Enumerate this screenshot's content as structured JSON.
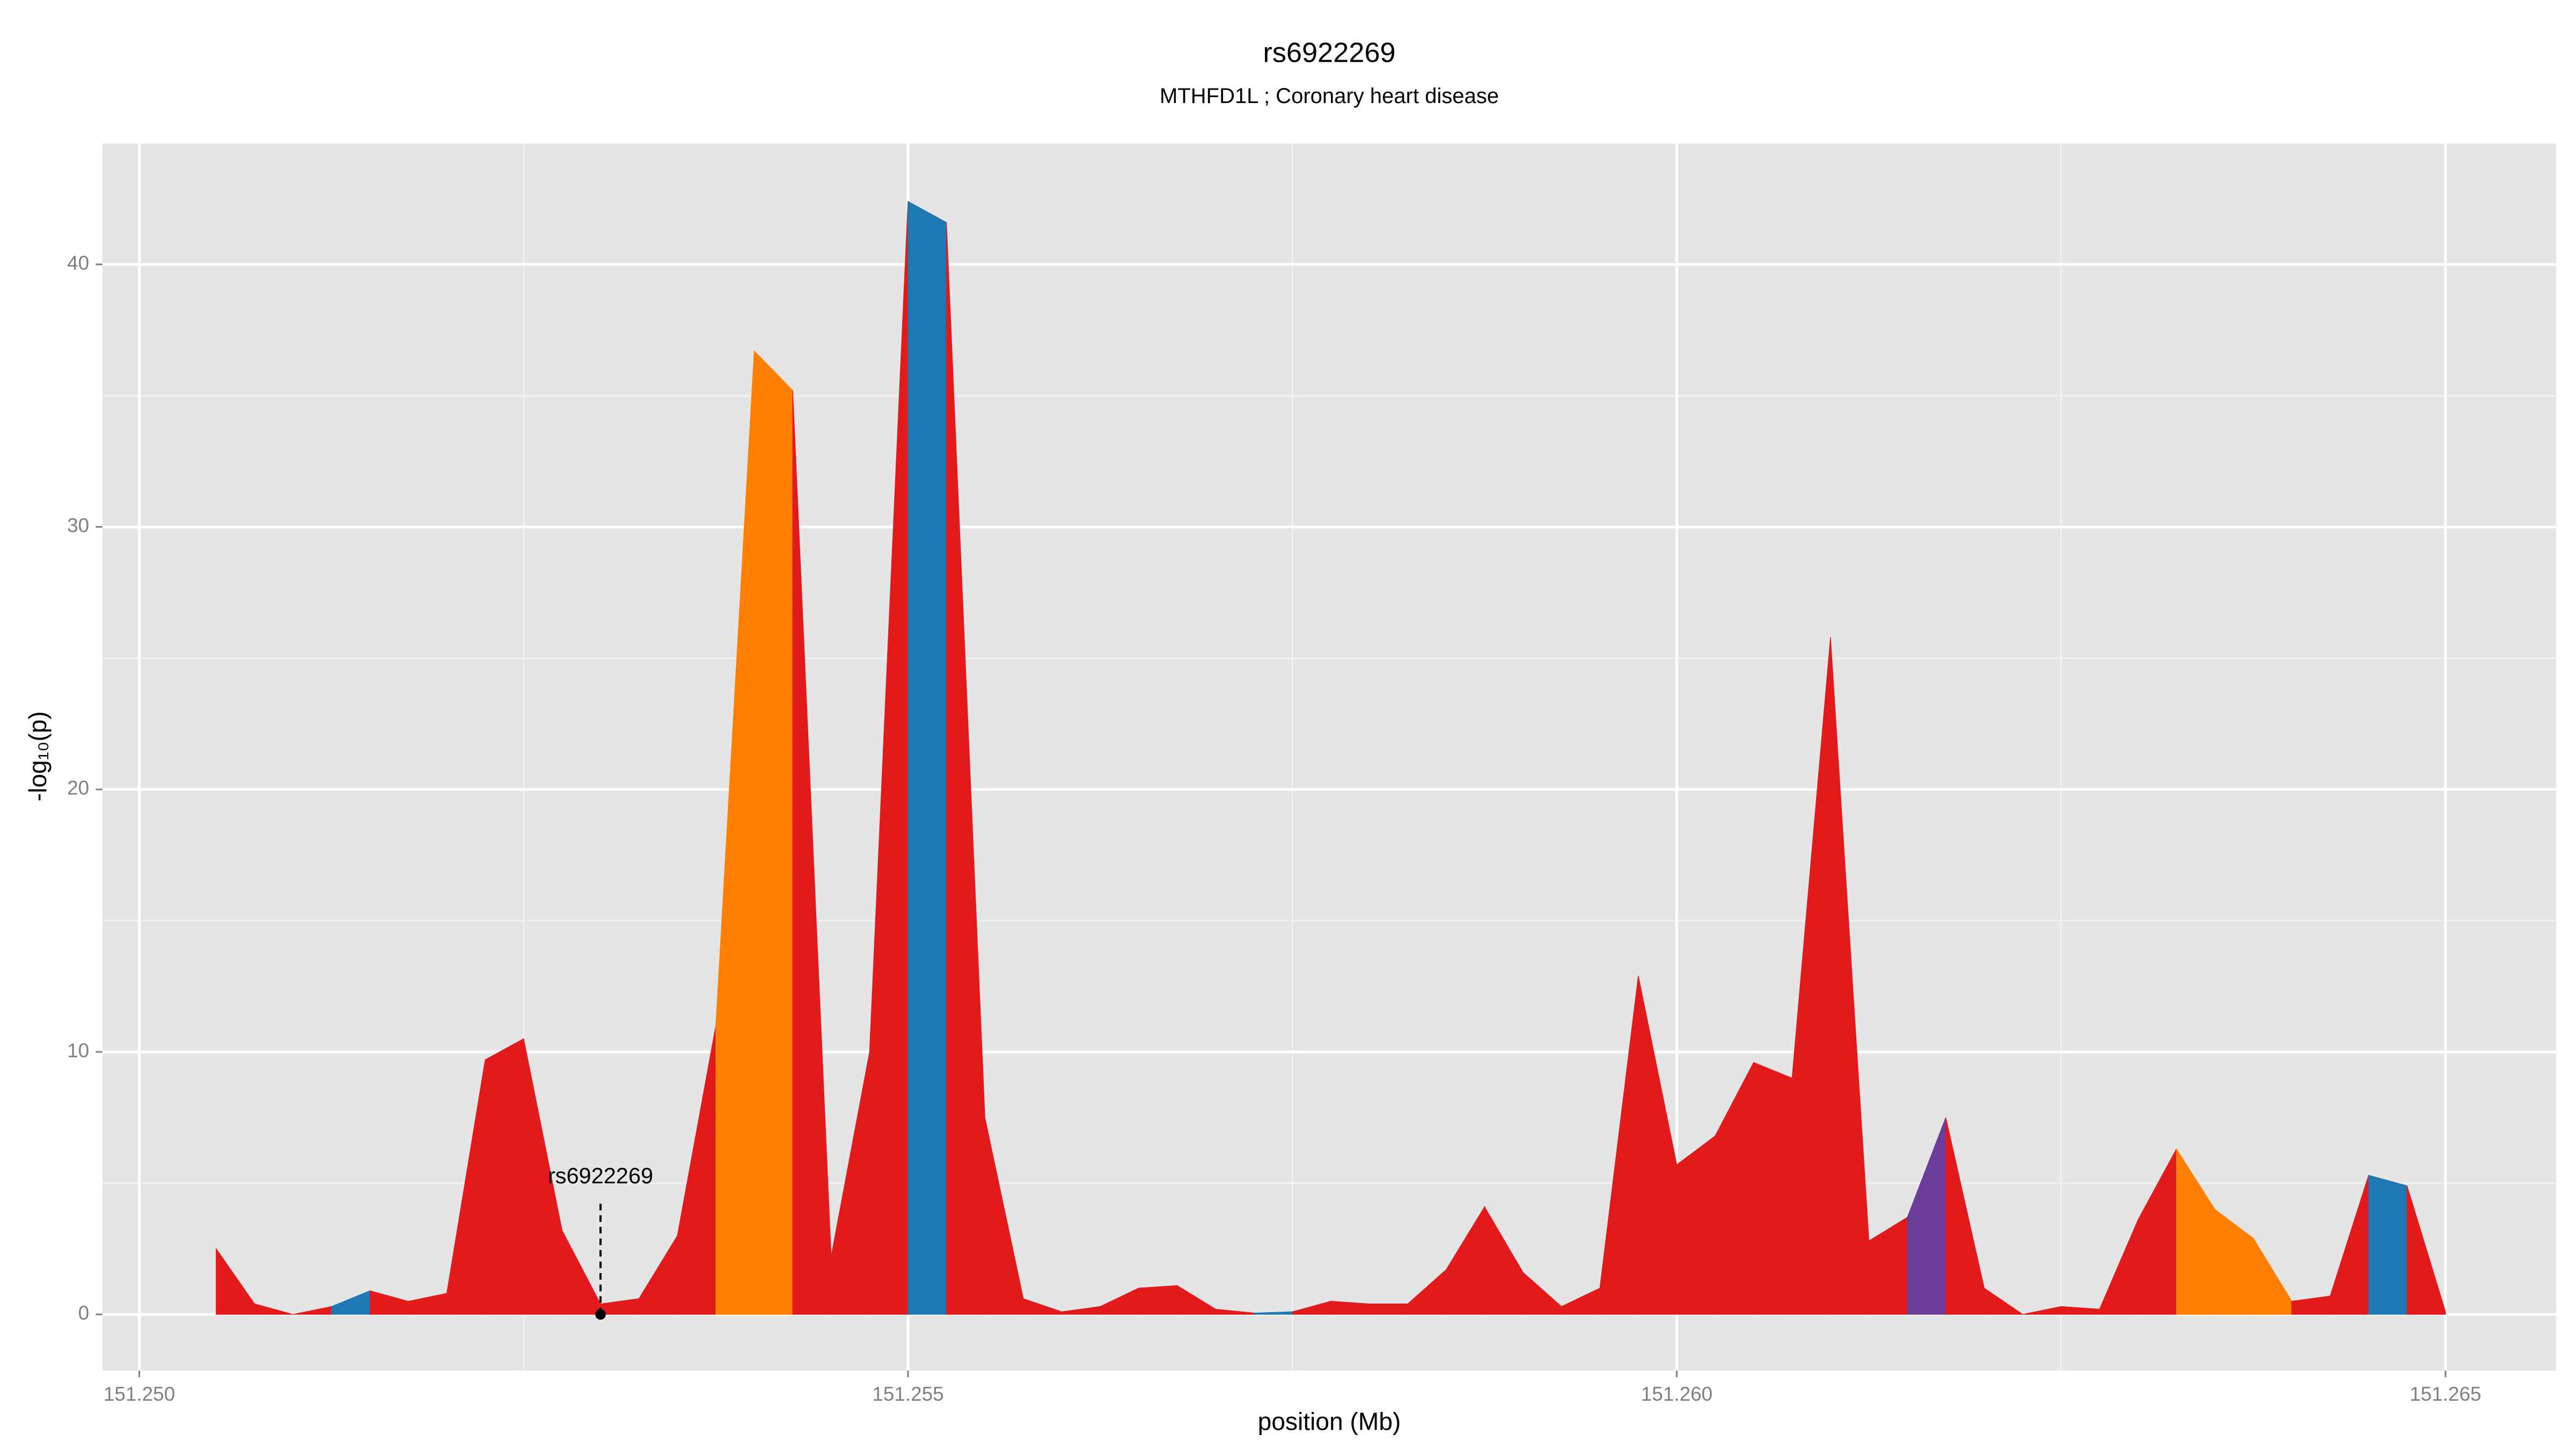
{
  "chart_data": {
    "type": "area",
    "title": "rs6922269",
    "subtitle": "MTHFD1L ; Coronary heart disease",
    "x_label": "position (Mb)",
    "y_label": "-log₁₀(p)",
    "x": [
      151.2505,
      151.25075,
      151.251,
      151.25125,
      151.2515,
      151.25175,
      151.252,
      151.25225,
      151.2525,
      151.25275,
      151.253,
      151.25325,
      151.2535,
      151.25375,
      151.254,
      151.25425,
      151.2545,
      151.25475,
      151.255,
      151.25525,
      151.2555,
      151.25575,
      151.256,
      151.25625,
      151.2565,
      151.25675,
      151.257,
      151.25725,
      151.2575,
      151.25775,
      151.258,
      151.25825,
      151.2585,
      151.25875,
      151.259,
      151.25925,
      151.2595,
      151.25975,
      151.26,
      151.26025,
      151.2605,
      151.26075,
      151.261,
      151.26125,
      151.2615,
      151.26175,
      151.262,
      151.26225,
      151.2625,
      151.26275,
      151.263,
      151.26325,
      151.2635,
      151.26375,
      151.264,
      151.26425,
      151.2645,
      151.26475,
      151.265
    ],
    "values": [
      2.5,
      0.4,
      0,
      0.3,
      0.9,
      0.5,
      0.8,
      9.7,
      10.5,
      3.2,
      0.4,
      0.6,
      3.0,
      11,
      36.7,
      35.2,
      2.2,
      10,
      42.4,
      41.6,
      7.5,
      0.6,
      0.1,
      0.3,
      1.0,
      1.1,
      0.2,
      0.05,
      0.1,
      0.5,
      0.4,
      0.4,
      1.7,
      4.1,
      1.6,
      0.3,
      1.0,
      12.9,
      5.7,
      6.8,
      9.6,
      9.0,
      25.8,
      2.8,
      3.7,
      7.5,
      1.0,
      0,
      0.3,
      0.2,
      3.6,
      6.3,
      4.0,
      2.9,
      0.5,
      0.7,
      5.3,
      4.9,
      0.1
    ],
    "colors": [
      "#e31a1c",
      "#e31a1c",
      "#e31a1c",
      "#1f78b4",
      "#e31a1c",
      "#e31a1c",
      "#e31a1c",
      "#e31a1c",
      "#e31a1c",
      "#e31a1c",
      "#e31a1c",
      "#e31a1c",
      "#e31a1c",
      "#ff7f00",
      "#ff7f00",
      "#e31a1c",
      "#e31a1c",
      "#e31a1c",
      "#1f78b4",
      "#e31a1c",
      "#e31a1c",
      "#e31a1c",
      "#e31a1c",
      "#e31a1c",
      "#e31a1c",
      "#e31a1c",
      "#e31a1c",
      "#1f78b4",
      "#e31a1c",
      "#e31a1c",
      "#e31a1c",
      "#e31a1c",
      "#e31a1c",
      "#e31a1c",
      "#e31a1c",
      "#e31a1c",
      "#e31a1c",
      "#e31a1c",
      "#e31a1c",
      "#e31a1c",
      "#e31a1c",
      "#e31a1c",
      "#e31a1c",
      "#e31a1c",
      "#6a3d9a",
      "#e31a1c",
      "#e31a1c",
      "#e31a1c",
      "#e31a1c",
      "#e31a1c",
      "#e31a1c",
      "#ff7f00",
      "#ff7f00",
      "#ff7f00",
      "#e31a1c",
      "#e31a1c",
      "#1f78b4",
      "#e31a1c",
      "#e31a1c"
    ],
    "xlim": [
      151.24976,
      151.26572
    ],
    "ylim": [
      -2.14,
      44.6
    ],
    "xticks": [
      {
        "value": 151.25,
        "label": "151.250"
      },
      151.255,
      {
        "value": 151.26,
        "label": "151.260"
      },
      151.265
    ],
    "yticks": [
      0,
      10,
      20,
      30,
      40
    ],
    "grid": true,
    "minor_grid": true,
    "annotation": {
      "text": "rs6922269",
      "x": 151.253,
      "y": 0
    }
  }
}
